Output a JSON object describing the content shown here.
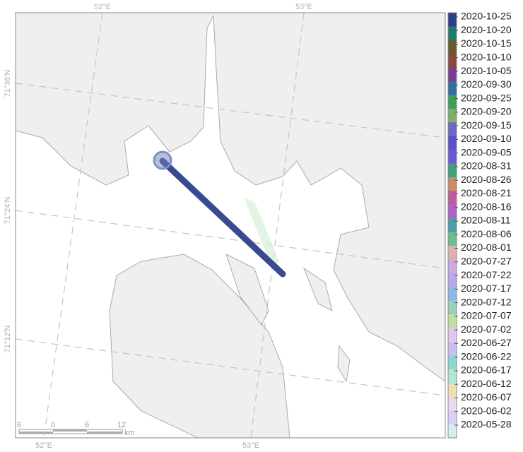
{
  "map": {
    "graticule": {
      "lon": [
        "52°E",
        "53°E"
      ],
      "lat": [
        "71°36'N",
        "71°24'N",
        "71°12'N"
      ]
    },
    "colorbar": {
      "labels": [
        "2020-10-25",
        "2020-10-20",
        "2020-10-15",
        "2020-10-10",
        "2020-10-05",
        "2020-09-30",
        "2020-09-25",
        "2020-09-20",
        "2020-09-15",
        "2020-09-10",
        "2020-09-05",
        "2020-08-31",
        "2020-08-26",
        "2020-08-21",
        "2020-08-16",
        "2020-08-11",
        "2020-08-06",
        "2020-08-01",
        "2020-07-27",
        "2020-07-22",
        "2020-07-17",
        "2020-07-12",
        "2020-07-07",
        "2020-07-02",
        "2020-06-27",
        "2020-06-22",
        "2020-06-17",
        "2020-06-12",
        "2020-06-07",
        "2020-06-02",
        "2020-05-28"
      ],
      "colors": [
        "#2c3e8c",
        "#1f7a6e",
        "#6b5a2a",
        "#8a4a3a",
        "#7a3f8e",
        "#2f6fa0",
        "#3f9e5a",
        "#7fb06a",
        "#6a6ac8",
        "#5a4fd0",
        "#6a5ad8",
        "#3fa07a",
        "#d08a6a",
        "#c05a9a",
        "#b060c8",
        "#4aa0a8",
        "#6ac08a",
        "#e0b0b0",
        "#d0a8e0",
        "#b8a8f0",
        "#8ab8e8",
        "#9ad0b8",
        "#c0e0a0",
        "#e0c8f0",
        "#c8c0f0",
        "#8ad8d0",
        "#b0e8d0",
        "#f0e0b0",
        "#e8d8f0",
        "#d8d0f8",
        "#d0f0f0"
      ]
    },
    "scale_bar": {
      "labels": [
        "6",
        "0",
        "6",
        "12"
      ],
      "unit": "km"
    }
  }
}
